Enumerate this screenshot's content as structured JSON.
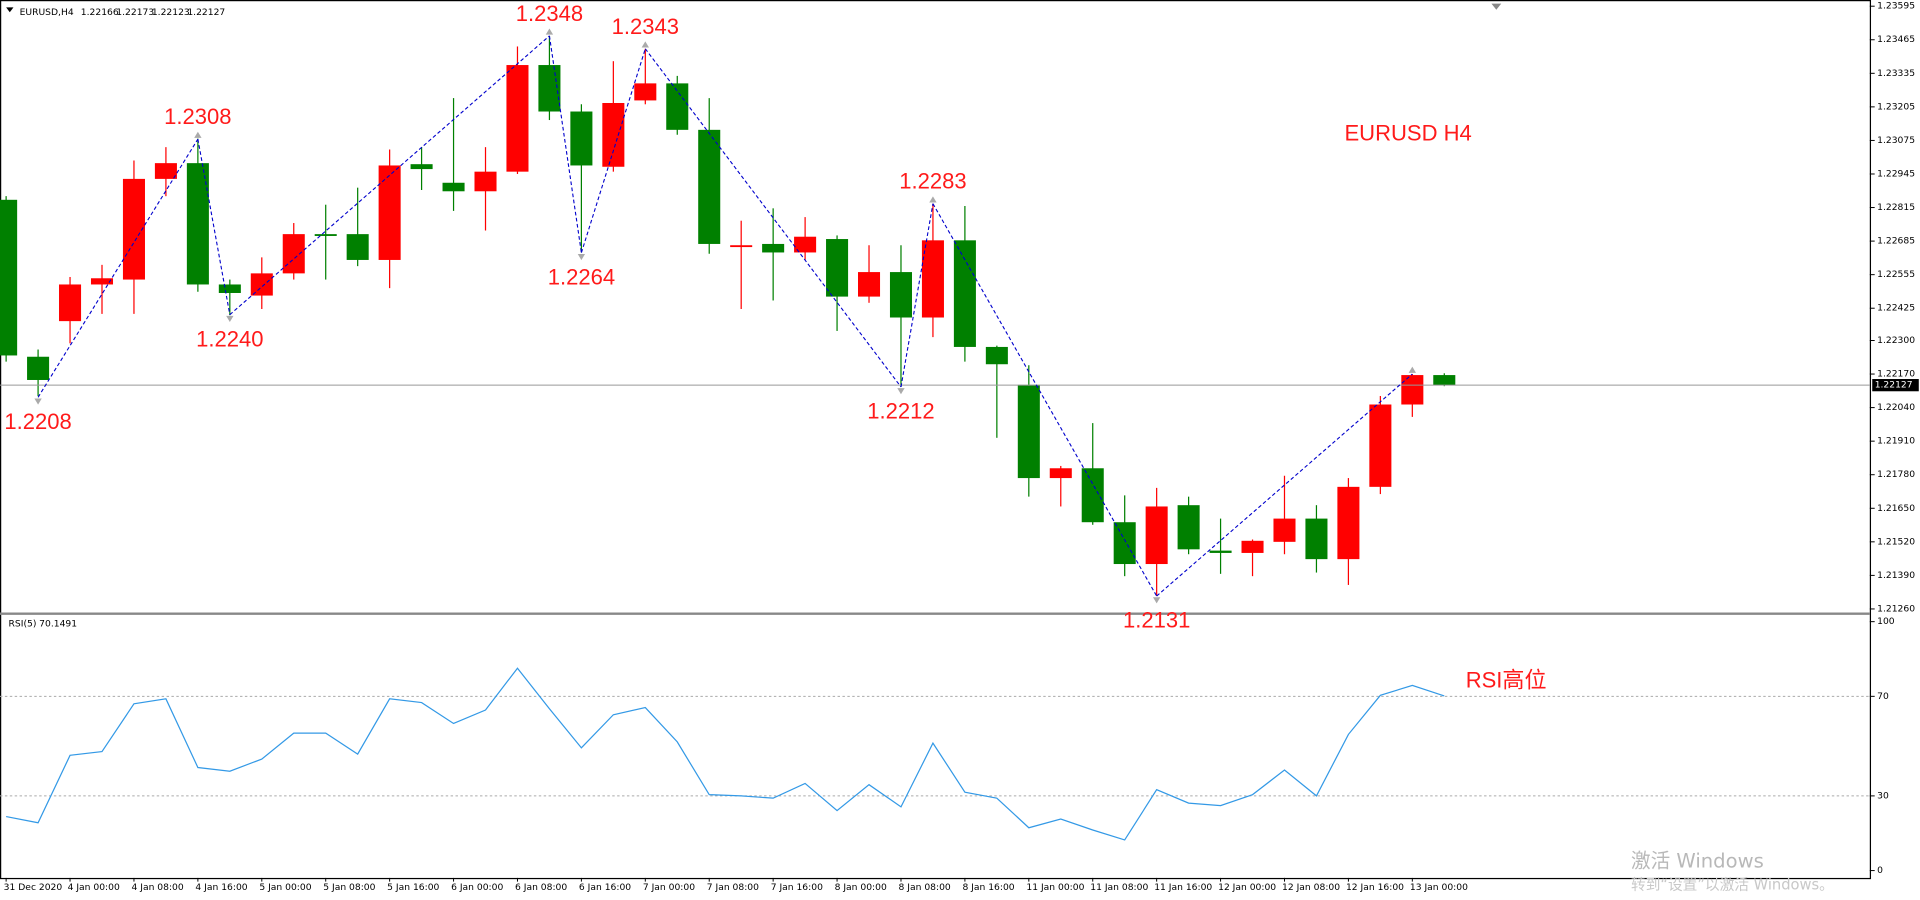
{
  "header": {
    "symbol": "EURUSD,H4"
  },
  "watermark": {
    "line1": "激活 Windows",
    "line2": "转到“设置”以激活 Windows。"
  },
  "chart_data": [
    {
      "type": "candlestick",
      "annotation": "EURUSD H4",
      "categories": [
        "31 Dec 2020",
        null,
        "4 Jan 00:00",
        null,
        "4 Jan 08:00",
        null,
        "4 Jan 16:00",
        null,
        "5 Jan 00:00",
        null,
        "5 Jan 08:00",
        null,
        "5 Jan 16:00",
        null,
        "6 Jan 00:00",
        null,
        "6 Jan 08:00",
        null,
        "6 Jan 16:00",
        null,
        "7 Jan 00:00",
        null,
        "7 Jan 08:00",
        null,
        "7 Jan 16:00",
        null,
        "8 Jan 00:00",
        null,
        "8 Jan 08:00",
        null,
        "8 Jan 16:00",
        null,
        "11 Jan 00:00",
        null,
        "11 Jan 08:00",
        null,
        "11 Jan 16:00",
        null,
        "12 Jan 00:00",
        null,
        "12 Jan 08:00",
        null,
        "12 Jan 16:00",
        null,
        "13 Jan 00:00",
        null
      ],
      "open": [
        1.22845,
        1.22237,
        1.22375,
        1.22517,
        1.22536,
        1.22926,
        1.22987,
        1.22517,
        1.22474,
        1.2256,
        1.22712,
        1.22712,
        1.22612,
        1.22983,
        1.22911,
        1.22878,
        1.22954,
        1.23367,
        1.23187,
        1.22973,
        1.2323,
        1.23296,
        1.23116,
        1.22664,
        1.22674,
        1.22641,
        1.22693,
        1.2247,
        1.22565,
        1.22389,
        1.22688,
        1.22275,
        1.22128,
        1.21767,
        1.21805,
        1.21596,
        1.21434,
        1.21662,
        1.21486,
        1.21477,
        1.2152,
        1.2161,
        1.21453,
        1.21733,
        1.22052,
        1.22166
      ],
      "high": [
        1.22859,
        1.22265,
        1.22546,
        1.22593,
        1.22997,
        1.23049,
        1.23082,
        1.22536,
        1.22622,
        1.22755,
        1.22826,
        1.22892,
        1.2304,
        1.23049,
        1.23239,
        1.23049,
        1.23439,
        1.2348,
        1.23215,
        1.23382,
        1.2343,
        1.23325,
        1.23239,
        1.22764,
        1.22812,
        1.22778,
        1.22707,
        1.22669,
        1.22669,
        1.2283,
        1.22821,
        1.2228,
        1.22204,
        1.21814,
        1.2198,
        1.217,
        1.21729,
        1.21695,
        1.2161,
        1.21529,
        1.21776,
        1.21662,
        1.21767,
        1.22085,
        1.2217,
        1.22173
      ],
      "low": [
        1.22218,
        1.22085,
        1.22289,
        1.22403,
        1.22403,
        1.22859,
        1.22489,
        1.22398,
        1.22422,
        1.22536,
        1.22536,
        1.22588,
        1.22503,
        1.22883,
        1.22802,
        1.22726,
        1.22945,
        1.23154,
        1.22641,
        1.22954,
        1.23215,
        1.23097,
        1.22636,
        1.22422,
        1.22455,
        1.22612,
        1.22337,
        1.22446,
        1.2212,
        1.22313,
        1.22218,
        1.21923,
        1.21695,
        1.21657,
        1.21586,
        1.21387,
        1.2131,
        1.21472,
        1.21396,
        1.21387,
        1.21472,
        1.21401,
        1.21353,
        1.21705,
        1.22004,
        1.22123
      ],
      "close": [
        1.22242,
        1.22147,
        1.22517,
        1.22541,
        1.22926,
        1.22987,
        1.22517,
        1.22484,
        1.2256,
        1.22712,
        1.22707,
        1.22612,
        1.22978,
        1.22964,
        1.22878,
        1.22954,
        1.23367,
        1.23187,
        1.22978,
        1.2322,
        1.23296,
        1.23116,
        1.22674,
        1.22669,
        1.22641,
        1.22702,
        1.2247,
        1.22565,
        1.22389,
        1.22688,
        1.22275,
        1.22208,
        1.21767,
        1.21805,
        1.21596,
        1.21434,
        1.21657,
        1.21491,
        1.21477,
        1.21524,
        1.2161,
        1.21453,
        1.21733,
        1.22052,
        1.22166,
        1.22127
      ],
      "up_color": "#ff0000",
      "down_color": "#008000",
      "zigzag": {
        "color": "#0000cc",
        "values": [
          null,
          1.2208,
          null,
          null,
          null,
          null,
          1.2308,
          1.224,
          null,
          null,
          null,
          null,
          null,
          null,
          null,
          null,
          null,
          1.2348,
          1.2264,
          null,
          1.2343,
          null,
          null,
          null,
          null,
          null,
          null,
          null,
          1.2212,
          1.2283,
          null,
          null,
          null,
          null,
          null,
          null,
          1.2131,
          null,
          null,
          null,
          null,
          null,
          null,
          null,
          1.2217,
          null
        ],
        "value_labels": [
          null,
          "1.2208",
          null,
          null,
          null,
          null,
          "1.2308",
          "1.2240",
          null,
          null,
          null,
          null,
          null,
          null,
          null,
          null,
          null,
          "1.2348",
          "1.2264",
          null,
          "1.2343",
          null,
          null,
          null,
          null,
          null,
          null,
          null,
          "1.2212",
          "1.2283",
          null,
          null,
          null,
          null,
          null,
          null,
          "1.2131",
          null,
          null,
          null,
          null,
          null,
          null,
          null,
          null,
          null
        ]
      },
      "ylim": [
        1.21244,
        1.23619
      ],
      "yticks": [
        1.23595,
        1.23465,
        1.23335,
        1.23205,
        1.23075,
        1.22945,
        1.22815,
        1.22685,
        1.22555,
        1.22425,
        {
          "value": 1.223,
          "label": "1.22300"
        },
        {
          "value": 1.2217,
          "label": "1.22170"
        },
        {
          "value": 1.2204,
          "label": "1.22040"
        },
        {
          "value": 1.2191,
          "label": "1.21910"
        },
        {
          "value": 1.2178,
          "label": "1.21780"
        },
        {
          "value": 1.2165,
          "label": "1.21650"
        },
        {
          "value": 1.2152,
          "label": "1.21520"
        },
        {
          "value": 1.2139,
          "label": "1.21390"
        },
        {
          "value": 1.2126,
          "label": "1.21260"
        }
      ]
    },
    {
      "type": "line",
      "title": "RSI(5)",
      "annotation": "RSI高位",
      "color": "#3399e6",
      "values": [
        21.7,
        19.2,
        46.3,
        47.8,
        67.0,
        69.0,
        41.4,
        39.9,
        44.8,
        55.2,
        55.2,
        46.8,
        69.0,
        67.5,
        59.1,
        64.5,
        81.3,
        65.0,
        49.3,
        62.6,
        65.5,
        51.7,
        30.5,
        30.0,
        29.1,
        35.0,
        24.1,
        34.5,
        25.6,
        51.2,
        31.5,
        29.1,
        17.2,
        20.7,
        16.3,
        12.3,
        32.5,
        27.1,
        26.1,
        30.5,
        40.4,
        30.0,
        54.7,
        70.4,
        74.4,
        70.1491
      ],
      "ylim": [
        0,
        100
      ],
      "yticks": [
        100,
        70,
        30,
        0
      ],
      "levels": [
        70,
        30
      ]
    }
  ]
}
